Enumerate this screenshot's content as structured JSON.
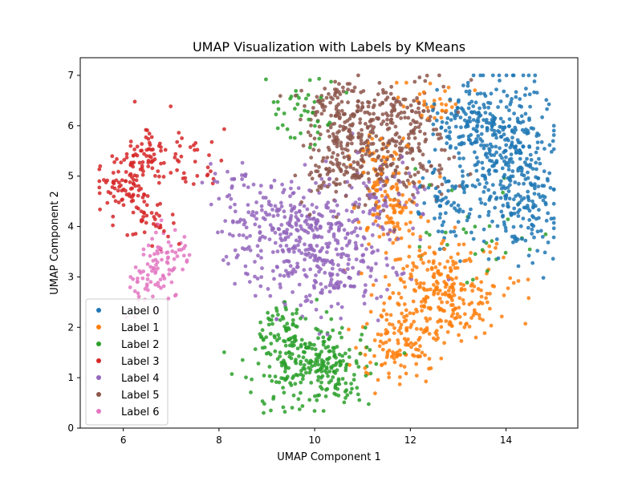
{
  "chart_data": {
    "type": "scatter",
    "title": "UMAP Visualization with Labels by KMeans",
    "xlabel": "UMAP Component 1",
    "ylabel": "UMAP Component 2",
    "xlim": [
      5.1,
      15.5
    ],
    "ylim": [
      0,
      7.35
    ],
    "xticks": [
      6,
      8,
      10,
      12,
      14
    ],
    "yticks": [
      0,
      1,
      2,
      3,
      4,
      5,
      6,
      7
    ],
    "grid": false,
    "legend_position": "lower-left",
    "series": [
      {
        "name": "Label 0",
        "color": "#1f77b4",
        "clusters": [
          {
            "cx": 14.0,
            "cy": 5.4,
            "sx": 0.5,
            "sy": 0.75,
            "n": 340
          },
          {
            "cx": 13.2,
            "cy": 6.1,
            "sx": 0.45,
            "sy": 0.4,
            "n": 120
          },
          {
            "cx": 12.8,
            "cy": 4.5,
            "sx": 0.4,
            "sy": 0.45,
            "n": 70
          },
          {
            "cx": 14.5,
            "cy": 4.2,
            "sx": 0.35,
            "sy": 0.45,
            "n": 60
          }
        ]
      },
      {
        "name": "Label 1",
        "color": "#ff7f0e",
        "clusters": [
          {
            "cx": 12.7,
            "cy": 2.7,
            "sx": 0.6,
            "sy": 0.5,
            "n": 260
          },
          {
            "cx": 11.8,
            "cy": 1.7,
            "sx": 0.45,
            "sy": 0.4,
            "n": 120
          },
          {
            "cx": 11.7,
            "cy": 4.3,
            "sx": 0.35,
            "sy": 0.45,
            "n": 90
          },
          {
            "cx": 11.3,
            "cy": 5.3,
            "sx": 0.3,
            "sy": 0.35,
            "n": 40
          },
          {
            "cx": 12.5,
            "cy": 6.5,
            "sx": 0.35,
            "sy": 0.25,
            "n": 30
          }
        ]
      },
      {
        "name": "Label 2",
        "color": "#2ca02c",
        "clusters": [
          {
            "cx": 10.0,
            "cy": 1.2,
            "sx": 0.55,
            "sy": 0.42,
            "n": 260
          },
          {
            "cx": 9.4,
            "cy": 1.9,
            "sx": 0.4,
            "sy": 0.3,
            "n": 70
          },
          {
            "cx": 9.8,
            "cy": 6.2,
            "sx": 0.4,
            "sy": 0.35,
            "n": 40
          },
          {
            "cx": 13.3,
            "cy": 4.0,
            "sx": 0.6,
            "sy": 0.6,
            "n": 30
          }
        ]
      },
      {
        "name": "Label 3",
        "color": "#d62728",
        "clusters": [
          {
            "cx": 5.95,
            "cy": 4.75,
            "sx": 0.3,
            "sy": 0.35,
            "n": 80
          },
          {
            "cx": 6.6,
            "cy": 5.5,
            "sx": 0.35,
            "sy": 0.28,
            "n": 70
          },
          {
            "cx": 6.7,
            "cy": 4.05,
            "sx": 0.3,
            "sy": 0.25,
            "n": 35
          },
          {
            "cx": 7.5,
            "cy": 5.3,
            "sx": 0.3,
            "sy": 0.3,
            "n": 25
          }
        ]
      },
      {
        "name": "Label 4",
        "color": "#9467bd",
        "clusters": [
          {
            "cx": 10.1,
            "cy": 3.6,
            "sx": 0.8,
            "sy": 0.6,
            "n": 380
          },
          {
            "cx": 9.3,
            "cy": 4.2,
            "sx": 0.55,
            "sy": 0.35,
            "n": 100
          },
          {
            "cx": 11.5,
            "cy": 4.5,
            "sx": 0.45,
            "sy": 0.4,
            "n": 50
          },
          {
            "cx": 8.3,
            "cy": 4.5,
            "sx": 0.25,
            "sy": 0.45,
            "n": 30
          }
        ]
      },
      {
        "name": "Label 5",
        "color": "#8c564b",
        "clusters": [
          {
            "cx": 10.8,
            "cy": 5.5,
            "sx": 0.6,
            "sy": 0.6,
            "n": 300
          },
          {
            "cx": 11.8,
            "cy": 6.2,
            "sx": 0.5,
            "sy": 0.35,
            "n": 120
          },
          {
            "cx": 10.4,
            "cy": 6.4,
            "sx": 0.35,
            "sy": 0.25,
            "n": 50
          },
          {
            "cx": 12.1,
            "cy": 5.2,
            "sx": 0.4,
            "sy": 0.35,
            "n": 60
          }
        ]
      },
      {
        "name": "Label 6",
        "color": "#e377c2",
        "clusters": [
          {
            "cx": 6.85,
            "cy": 3.3,
            "sx": 0.25,
            "sy": 0.35,
            "n": 70
          },
          {
            "cx": 6.5,
            "cy": 2.8,
            "sx": 0.25,
            "sy": 0.25,
            "n": 30
          }
        ]
      }
    ]
  }
}
